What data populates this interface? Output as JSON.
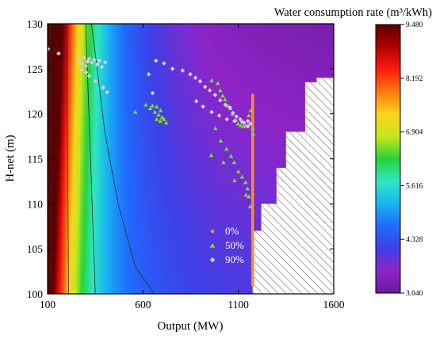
{
  "chart_data": {
    "type": "heatmap",
    "xlabel": "Output (MW)",
    "ylabel": "H-net (m)",
    "xlim": [
      100,
      1600
    ],
    "ylim": [
      100,
      130
    ],
    "xticks": [
      100,
      600,
      1100,
      1600
    ],
    "yticks": [
      100,
      105,
      110,
      115,
      120,
      125,
      130
    ],
    "colorbar": {
      "title": "Water consumption rate (m³/kWh)",
      "range": [
        3.04,
        9.48
      ],
      "ticks": [
        "3.040",
        "4.328",
        "5.616",
        "6.904",
        "8.192",
        "9.480"
      ],
      "palette": [
        "#6a1b9a",
        "#8e24c8",
        "#3f3fe6",
        "#1f6bff",
        "#19b4f0",
        "#2fe6c4",
        "#28d23a",
        "#c8e61e",
        "#ffd21a",
        "#ff7a10",
        "#ff1a10",
        "#b40000",
        "#5a0000"
      ]
    },
    "hatched_region": {
      "boundary": [
        [
          1100,
          100
        ],
        [
          1600,
          100
        ],
        [
          1600,
          124
        ],
        [
          1510,
          124
        ],
        [
          1510,
          123.5
        ],
        [
          1450,
          123.5
        ],
        [
          1450,
          118
        ],
        [
          1350,
          118
        ],
        [
          1350,
          114
        ],
        [
          1300,
          114
        ],
        [
          1300,
          110
        ],
        [
          1220,
          110
        ],
        [
          1220,
          107
        ],
        [
          1175,
          107
        ],
        [
          1175,
          100
        ]
      ],
      "pattern": "diagonal hatch"
    },
    "contours_approx": [
      [
        [
          120,
          100
        ],
        [
          118,
          115
        ],
        [
          115,
          130
        ]
      ],
      [
        [
          210,
          100
        ],
        [
          205,
          115
        ],
        [
          200,
          130
        ]
      ],
      [
        [
          350,
          100
        ],
        [
          330,
          112
        ],
        [
          300,
          130
        ]
      ],
      [
        [
          660,
          100
        ],
        [
          560,
          103
        ],
        [
          470,
          110
        ],
        [
          400,
          118
        ],
        [
          360,
          125
        ],
        [
          330,
          130
        ]
      ]
    ],
    "legend": {
      "position": "center-right",
      "entries": [
        "0%",
        "50%",
        "90%"
      ]
    },
    "series": [
      {
        "name": "0%",
        "marker": "circle",
        "color": "#ff8a2a",
        "points": [
          [
            1175,
            101
          ],
          [
            1175,
            102
          ],
          [
            1175,
            103
          ],
          [
            1175,
            104
          ],
          [
            1175,
            105
          ],
          [
            1175,
            106
          ],
          [
            1175,
            107
          ],
          [
            1175,
            108
          ],
          [
            1175,
            109
          ],
          [
            1175,
            110
          ],
          [
            1175,
            111
          ],
          [
            1175,
            112
          ],
          [
            1175,
            113
          ],
          [
            1175,
            114
          ],
          [
            1175,
            115
          ],
          [
            1175,
            116
          ],
          [
            1175,
            117
          ],
          [
            1175,
            118
          ],
          [
            1175,
            119
          ],
          [
            1175,
            120
          ],
          [
            1175,
            121
          ],
          [
            1175,
            122
          ]
        ]
      },
      {
        "name": "50%",
        "marker": "triangle",
        "color": "#7fd82a",
        "points": [
          [
            560,
            120.2
          ],
          [
            615,
            121.0
          ],
          [
            638,
            120.6
          ],
          [
            650,
            120.9
          ],
          [
            662,
            120.2
          ],
          [
            672,
            120.8
          ],
          [
            682,
            119.9
          ],
          [
            692,
            120.4
          ],
          [
            700,
            119.6
          ],
          [
            710,
            119.4
          ],
          [
            722,
            119.0
          ],
          [
            672,
            119.4
          ],
          [
            690,
            119.2
          ],
          [
            960,
            123.7
          ],
          [
            992,
            123.4
          ],
          [
            1005,
            122.6
          ],
          [
            1018,
            122.0
          ],
          [
            1030,
            121.6
          ],
          [
            1045,
            120.9
          ],
          [
            1058,
            120.6
          ],
          [
            1070,
            120.0
          ],
          [
            1085,
            119.3
          ],
          [
            1098,
            118.9
          ],
          [
            1112,
            118.7
          ],
          [
            1128,
            118.6
          ],
          [
            1140,
            118.7
          ],
          [
            1155,
            119.8
          ],
          [
            1165,
            120.4
          ],
          [
            980,
            118.4
          ],
          [
            1008,
            117.0
          ],
          [
            1038,
            116.1
          ],
          [
            1062,
            115.3
          ],
          [
            1078,
            114.6
          ],
          [
            1100,
            113.6
          ],
          [
            1120,
            113.0
          ],
          [
            1138,
            112.4
          ],
          [
            1148,
            111.7
          ],
          [
            1155,
            110.8
          ],
          [
            1162,
            109.7
          ],
          [
            958,
            115.4
          ],
          [
            1022,
            114.6
          ],
          [
            1080,
            112.6
          ],
          [
            1140,
            111.0
          ],
          [
            1175,
            118.4
          ],
          [
            1178,
            117.8
          ]
        ]
      },
      {
        "name": "90%",
        "marker": "diamond",
        "color": "#dcc8e6",
        "points": [
          [
            102,
            127.2
          ],
          [
            158,
            126.7
          ],
          [
            262,
            126.0
          ],
          [
            278,
            125.6
          ],
          [
            292,
            126.2
          ],
          [
            300,
            125.3
          ],
          [
            310,
            125.8
          ],
          [
            318,
            126.1
          ],
          [
            332,
            125.7
          ],
          [
            345,
            126.0
          ],
          [
            360,
            125.5
          ],
          [
            372,
            125.9
          ],
          [
            385,
            125.2
          ],
          [
            402,
            125.7
          ],
          [
            282,
            124.9
          ],
          [
            302,
            124.6
          ],
          [
            318,
            124.2
          ],
          [
            350,
            123.6
          ],
          [
            392,
            122.9
          ],
          [
            412,
            122.4
          ],
          [
            668,
            125.9
          ],
          [
            710,
            125.6
          ],
          [
            755,
            125.0
          ],
          [
            808,
            124.8
          ],
          [
            848,
            124.4
          ],
          [
            875,
            124.0
          ],
          [
            900,
            123.6
          ],
          [
            925,
            123.0
          ],
          [
            950,
            122.6
          ],
          [
            978,
            122.1
          ],
          [
            1005,
            121.5
          ],
          [
            1032,
            121.0
          ],
          [
            1056,
            120.7
          ],
          [
            1072,
            120.1
          ],
          [
            1090,
            119.7
          ],
          [
            1110,
            119.4
          ],
          [
            1130,
            119.0
          ],
          [
            1150,
            118.6
          ],
          [
            1163,
            118.9
          ],
          [
            630,
            124.4
          ],
          [
            650,
            122.3
          ],
          [
            880,
            121.4
          ],
          [
            915,
            120.8
          ],
          [
            960,
            120.2
          ],
          [
            1000,
            119.8
          ],
          [
            1040,
            119.4
          ],
          [
            1080,
            119.2
          ],
          [
            1120,
            119.1
          ],
          [
            1150,
            119.2
          ]
        ]
      }
    ]
  }
}
